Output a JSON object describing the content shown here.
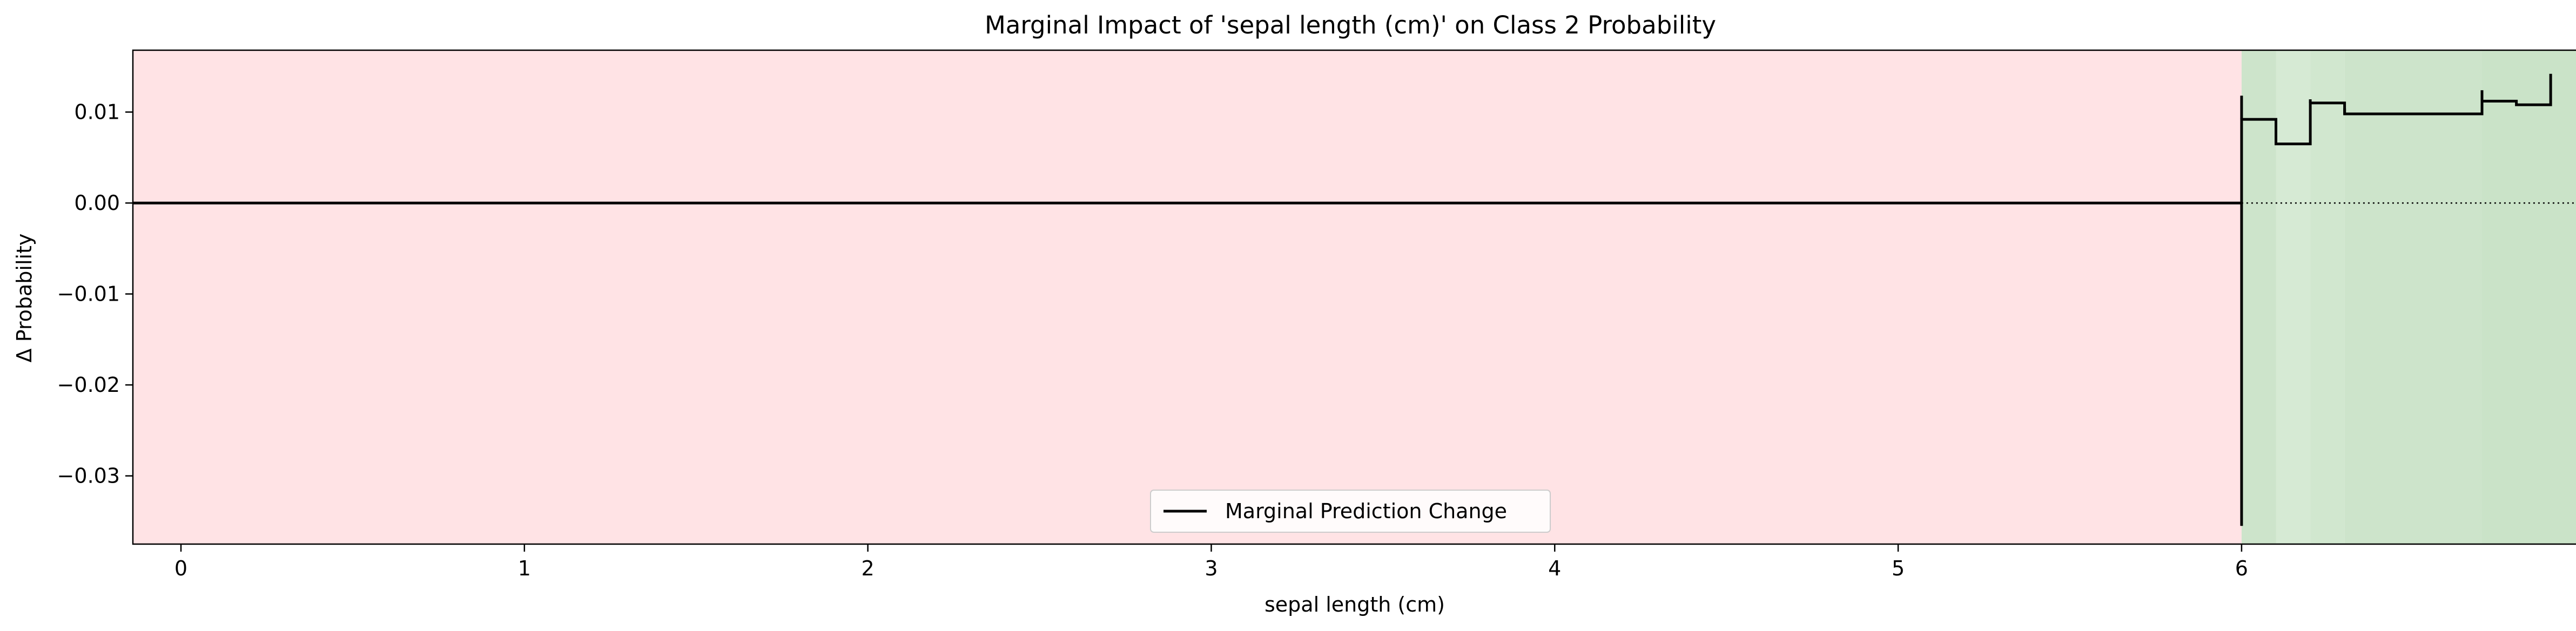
{
  "chart_data": {
    "type": "line",
    "title": "Marginal Impact of 'sepal length (cm)' on Class 2 Probability",
    "xlabel": "sepal length (cm)",
    "ylabel": "Δ Probability",
    "xlim": [
      -0.14,
      6.98
    ],
    "ylim": [
      -0.0375,
      0.0168
    ],
    "x_ticks": [
      0,
      1,
      2,
      3,
      4,
      5,
      6
    ],
    "x_tick_labels": [
      "0",
      "1",
      "2",
      "3",
      "4",
      "5",
      "6"
    ],
    "y_ticks": [
      0.01,
      0.0,
      -0.01,
      -0.02,
      -0.03
    ],
    "y_tick_labels": [
      "0.01",
      "0.00",
      "−0.01",
      "−0.02",
      "−0.03"
    ],
    "grid": false,
    "legend_position": "lower center",
    "background_bands": [
      {
        "x0": -0.14,
        "x1": 6.0,
        "color": "#ffe3e5"
      },
      {
        "x0": 6.0,
        "x1": 6.1,
        "color": "#cde4cb"
      },
      {
        "x0": 6.1,
        "x1": 6.2,
        "color": "#d6ead4"
      },
      {
        "x0": 6.2,
        "x1": 6.3,
        "color": "#d1e7cf"
      },
      {
        "x0": 6.3,
        "x1": 6.7,
        "color": "#cde4cb"
      },
      {
        "x0": 6.7,
        "x1": 6.98,
        "color": "#cae3c8"
      }
    ],
    "zero_line": {
      "y": 0.0,
      "solid_x": [
        -0.14,
        6.0
      ],
      "dotted_x": [
        6.0,
        6.98
      ],
      "color": "#000000"
    },
    "series": [
      {
        "name": "Marginal Prediction Change",
        "color": "#000000",
        "x": [
          -0.14,
          6.0,
          6.0,
          6.0,
          6.1,
          6.1,
          6.2,
          6.2,
          6.3,
          6.3,
          6.7,
          6.7,
          6.8,
          6.8,
          6.9,
          6.9
        ],
        "y": [
          0.0,
          0.0,
          -0.0355,
          0.0092,
          0.0092,
          0.0065,
          0.0065,
          0.011,
          0.011,
          0.0098,
          0.0098,
          0.0112,
          0.0112,
          0.0108,
          0.0108,
          0.0142
        ]
      }
    ],
    "extra_segments": [
      {
        "x": [
          6.0,
          6.0
        ],
        "y": [
          0.0092,
          0.0118
        ]
      },
      {
        "x": [
          6.2,
          6.2
        ],
        "y": [
          0.011,
          0.0114
        ]
      },
      {
        "x": [
          6.3,
          6.3
        ],
        "y": [
          0.0098,
          0.0104
        ]
      },
      {
        "x": [
          6.7,
          6.7
        ],
        "y": [
          0.0112,
          0.0124
        ]
      }
    ]
  }
}
